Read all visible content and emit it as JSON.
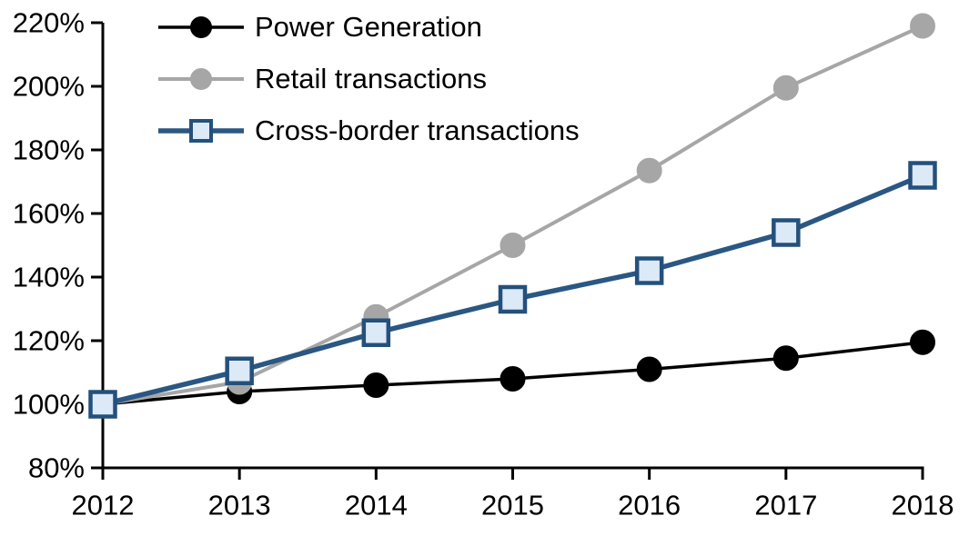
{
  "chart_data": {
    "type": "line",
    "title": "",
    "xlabel": "",
    "ylabel": "",
    "x": [
      2012,
      2013,
      2014,
      2015,
      2016,
      2017,
      2018
    ],
    "x_tick_labels": [
      "2012",
      "2013",
      "2014",
      "2015",
      "2016",
      "2017",
      "2018"
    ],
    "y_tick_labels": [
      "80%",
      "100%",
      "120%",
      "140%",
      "160%",
      "180%",
      "200%",
      "220%"
    ],
    "y_tick_values": [
      80,
      100,
      120,
      140,
      160,
      180,
      200,
      220
    ],
    "ylim": [
      80,
      220
    ],
    "grid": false,
    "legend_position": "top-left",
    "background_color": "#ffffff",
    "axis_color": "#000000",
    "series": [
      {
        "name": "Power Generation",
        "values": [
          100,
          104,
          106,
          108,
          111,
          114.5,
          119.5
        ],
        "line_color": "#000000",
        "line_width": 3.5,
        "marker": "circle",
        "marker_fill": "#000000",
        "marker_stroke": "#000000"
      },
      {
        "name": "Retail transactions",
        "values": [
          100,
          107,
          127.5,
          150,
          173.5,
          199.5,
          219
        ],
        "line_color": "#a6a6a6",
        "line_width": 4,
        "marker": "circle",
        "marker_fill": "#a6a6a6",
        "marker_stroke": "#a6a6a6"
      },
      {
        "name": "Cross-border transactions",
        "values": [
          100,
          110.5,
          122.5,
          133,
          142,
          154,
          172
        ],
        "line_color": "#2a5783",
        "line_width": 5.5,
        "marker": "square",
        "marker_fill": "#dce9f7",
        "marker_stroke": "#24507c"
      }
    ]
  }
}
